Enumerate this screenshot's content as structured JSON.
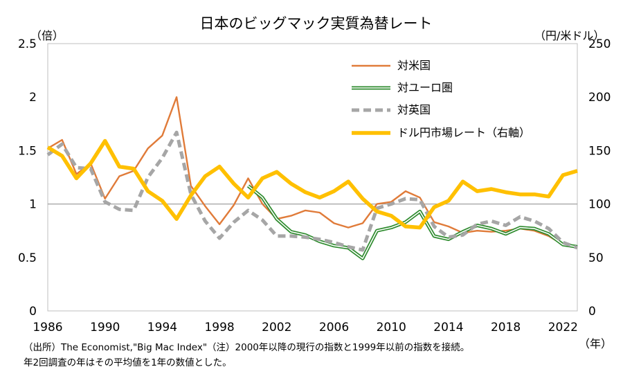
{
  "title": "日本のビッグマック実質為替レート",
  "left_unit": "（倍）",
  "right_unit": "（円/米ドル）",
  "x_unit": "（年）",
  "source_note_line1": "（出所）The Economist,\"Big Mac Index\"（注）2000年以降の現行の指数と1999年以前の指数を接続。",
  "source_note_line2": "年2回調査の年はその平均値を1年の数値とした。",
  "colors": {
    "us": "#e07b39",
    "euro": "#2e8b2e",
    "uk": "#a6a6a6",
    "market": "#ffc000",
    "refline": "#a0a0a0"
  },
  "chart_data": {
    "type": "line",
    "title": "日本のビッグマック実質為替レート",
    "x_ticks": [
      "1986",
      "1990",
      "1994",
      "1998",
      "2002",
      "2006",
      "2010",
      "2014",
      "2018",
      "2022"
    ],
    "xlim": [
      1986,
      2023
    ],
    "y_left": {
      "label": "（倍）",
      "lim": [
        0,
        2.5
      ],
      "ticks": [
        "0",
        "0.5",
        "1",
        "1.5",
        "2",
        "2.5"
      ]
    },
    "y_right": {
      "label": "（円/米ドル）",
      "lim": [
        0,
        250
      ],
      "ticks": [
        "0",
        "50",
        "100",
        "150",
        "200",
        "250"
      ]
    },
    "reference_line": 1,
    "legend_position": "top-right",
    "series": [
      {
        "name": "対米国",
        "axis": "left",
        "style": "solid",
        "x": [
          1986,
          1987,
          1988,
          1989,
          1990,
          1991,
          1992,
          1993,
          1994,
          1995,
          1996,
          1997,
          1998,
          1999,
          2000,
          2001,
          2002,
          2003,
          2004,
          2005,
          2006,
          2007,
          2008,
          2009,
          2010,
          2011,
          2012,
          2013,
          2014,
          2015,
          2016,
          2017,
          2018,
          2019,
          2020,
          2021,
          2022,
          2023
        ],
        "y": [
          1.52,
          1.6,
          1.28,
          1.38,
          1.05,
          1.26,
          1.31,
          1.52,
          1.64,
          2.0,
          1.17,
          0.98,
          0.81,
          0.99,
          1.24,
          1.0,
          0.86,
          0.89,
          0.94,
          0.92,
          0.82,
          0.78,
          0.82,
          1.0,
          1.02,
          1.12,
          1.06,
          0.83,
          0.79,
          0.73,
          0.75,
          0.74,
          0.75,
          0.77,
          0.75,
          0.7,
          0.62,
          0.59
        ]
      },
      {
        "name": "対ユーロ圏",
        "axis": "left",
        "style": "double",
        "x": [
          2000,
          2001,
          2002,
          2003,
          2004,
          2005,
          2006,
          2007,
          2008,
          2009,
          2010,
          2011,
          2012,
          2013,
          2014,
          2015,
          2016,
          2017,
          2018,
          2019,
          2020,
          2021,
          2022,
          2023
        ],
        "y": [
          1.17,
          1.06,
          0.86,
          0.74,
          0.71,
          0.65,
          0.61,
          0.59,
          0.49,
          0.75,
          0.78,
          0.83,
          0.93,
          0.7,
          0.67,
          0.74,
          0.8,
          0.77,
          0.72,
          0.78,
          0.77,
          0.72,
          0.62,
          0.6
        ]
      },
      {
        "name": "対英国",
        "axis": "left",
        "style": "dashed",
        "x": [
          1986,
          1987,
          1988,
          1989,
          1990,
          1991,
          1992,
          1993,
          1994,
          1995,
          1996,
          1997,
          1998,
          1999,
          2000,
          2001,
          2002,
          2003,
          2004,
          2005,
          2006,
          2007,
          2008,
          2009,
          2010,
          2011,
          2012,
          2013,
          2014,
          2015,
          2016,
          2017,
          2018,
          2019,
          2020,
          2021,
          2022,
          2023
        ],
        "y": [
          1.46,
          1.56,
          1.34,
          1.33,
          1.02,
          0.95,
          0.94,
          1.25,
          1.43,
          1.67,
          1.09,
          0.84,
          0.68,
          0.83,
          0.94,
          0.85,
          0.7,
          0.7,
          0.69,
          0.67,
          0.64,
          0.6,
          0.57,
          0.96,
          1.0,
          1.05,
          1.04,
          0.79,
          0.69,
          0.71,
          0.81,
          0.84,
          0.8,
          0.88,
          0.84,
          0.77,
          0.64,
          0.59
        ]
      },
      {
        "name": "ドル円市場レート（右軸）",
        "axis": "right",
        "style": "thick",
        "x": [
          1986,
          1987,
          1988,
          1989,
          1990,
          1991,
          1992,
          1993,
          1994,
          1995,
          1996,
          1997,
          1998,
          1999,
          2000,
          2001,
          2002,
          2003,
          2004,
          2005,
          2006,
          2007,
          2008,
          2009,
          2010,
          2011,
          2012,
          2013,
          2014,
          2015,
          2016,
          2017,
          2018,
          2019,
          2020,
          2021,
          2022,
          2023
        ],
        "y": [
          153,
          145,
          124,
          138,
          159,
          135,
          133,
          112,
          103,
          86,
          108,
          126,
          135,
          119,
          106,
          124,
          130,
          119,
          111,
          106,
          112,
          121,
          105,
          93,
          89,
          79,
          78,
          97,
          103,
          121,
          112,
          114,
          111,
          109,
          109,
          107,
          127,
          131
        ]
      }
    ]
  }
}
